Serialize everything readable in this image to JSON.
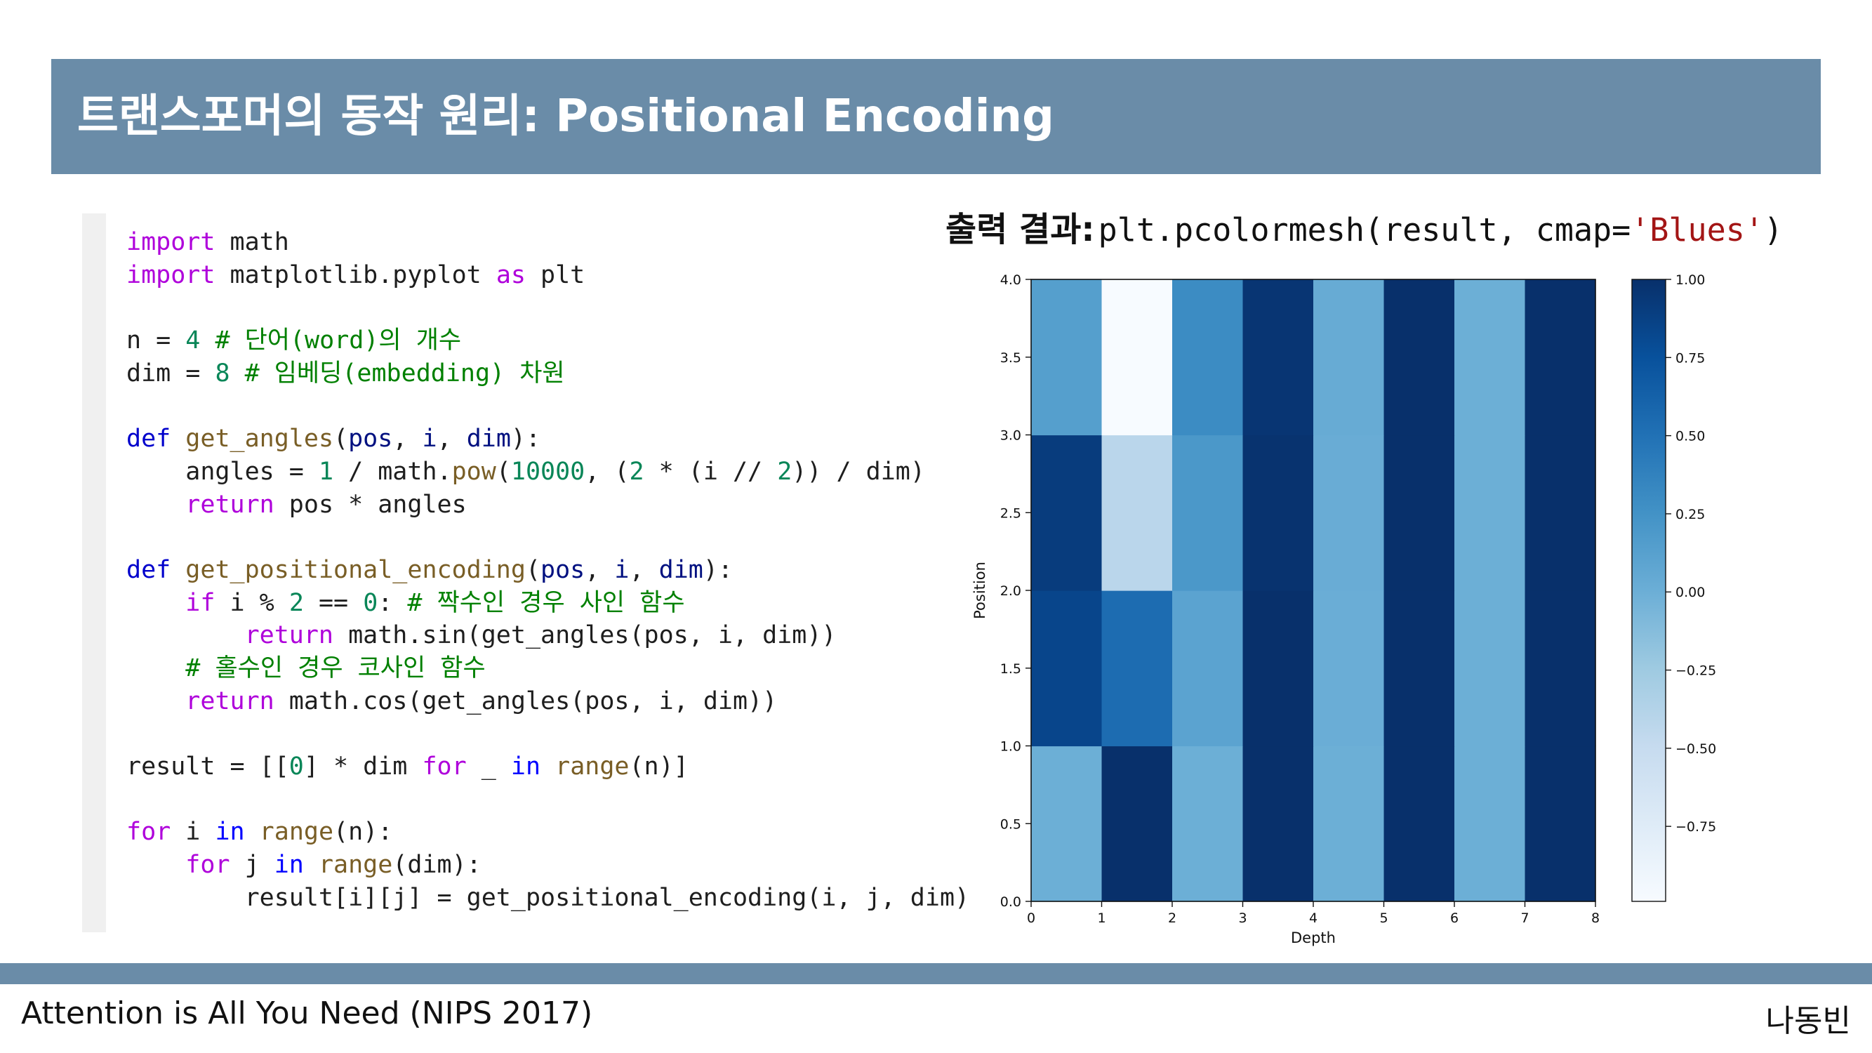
{
  "slide": {
    "title": "트랜스포머의 동작 원리: Positional Encoding",
    "footer_left": "Attention is All You Need (NIPS 2017)",
    "footer_right": "나동빈"
  },
  "output_heading": {
    "label": "출력 결과:",
    "code_prefix": "plt.pcolormesh(result, cmap=",
    "code_string": "'Blues'",
    "code_suffix": ")"
  },
  "code": {
    "lines": [
      [
        {
          "t": "import",
          "c": "kw"
        },
        {
          "t": " math"
        }
      ],
      [
        {
          "t": "import",
          "c": "kw"
        },
        {
          "t": " matplotlib.pyplot "
        },
        {
          "t": "as",
          "c": "kw"
        },
        {
          "t": " plt"
        }
      ],
      [],
      [
        {
          "t": "n = "
        },
        {
          "t": "4",
          "c": "num"
        },
        {
          "t": " # 단어(word)의 개수",
          "c": "cmt"
        }
      ],
      [
        {
          "t": "dim = "
        },
        {
          "t": "8",
          "c": "num"
        },
        {
          "t": " # 임베딩(embedding) 차원",
          "c": "cmt"
        }
      ],
      [],
      [
        {
          "t": "def",
          "c": "def"
        },
        {
          "t": " "
        },
        {
          "t": "get_angles",
          "c": "fn"
        },
        {
          "t": "("
        },
        {
          "t": "pos",
          "c": "param"
        },
        {
          "t": ", "
        },
        {
          "t": "i",
          "c": "param"
        },
        {
          "t": ", "
        },
        {
          "t": "dim",
          "c": "param"
        },
        {
          "t": "):"
        }
      ],
      [
        {
          "t": "    angles = "
        },
        {
          "t": "1",
          "c": "num"
        },
        {
          "t": " / math."
        },
        {
          "t": "pow",
          "c": "fn"
        },
        {
          "t": "("
        },
        {
          "t": "10000",
          "c": "num"
        },
        {
          "t": ", ("
        },
        {
          "t": "2",
          "c": "num"
        },
        {
          "t": " * (i // "
        },
        {
          "t": "2",
          "c": "num"
        },
        {
          "t": ")) / dim)"
        }
      ],
      [
        {
          "t": "    "
        },
        {
          "t": "return",
          "c": "kw"
        },
        {
          "t": " pos * angles"
        }
      ],
      [],
      [
        {
          "t": "def",
          "c": "def"
        },
        {
          "t": " "
        },
        {
          "t": "get_positional_encoding",
          "c": "fn"
        },
        {
          "t": "("
        },
        {
          "t": "pos",
          "c": "param"
        },
        {
          "t": ", "
        },
        {
          "t": "i",
          "c": "param"
        },
        {
          "t": ", "
        },
        {
          "t": "dim",
          "c": "param"
        },
        {
          "t": "):"
        }
      ],
      [
        {
          "t": "    "
        },
        {
          "t": "if",
          "c": "kw"
        },
        {
          "t": " i % "
        },
        {
          "t": "2",
          "c": "num"
        },
        {
          "t": " == "
        },
        {
          "t": "0",
          "c": "num"
        },
        {
          "t": ": "
        },
        {
          "t": "# 짝수인 경우 사인 함수",
          "c": "cmt"
        }
      ],
      [
        {
          "t": "        "
        },
        {
          "t": "return",
          "c": "kw"
        },
        {
          "t": " math.sin(get_angles(pos, i, dim))"
        }
      ],
      [
        {
          "t": "    "
        },
        {
          "t": "# 홀수인 경우 코사인 함수",
          "c": "cmt"
        }
      ],
      [
        {
          "t": "    "
        },
        {
          "t": "return",
          "c": "kw"
        },
        {
          "t": " math.cos(get_angles(pos, i, dim))"
        }
      ],
      [],
      [
        {
          "t": "result = [["
        },
        {
          "t": "0",
          "c": "num"
        },
        {
          "t": "] * dim "
        },
        {
          "t": "for",
          "c": "kw"
        },
        {
          "t": " _ "
        },
        {
          "t": "in",
          "c": "op"
        },
        {
          "t": " "
        },
        {
          "t": "range",
          "c": "fn"
        },
        {
          "t": "(n)]"
        }
      ],
      [],
      [
        {
          "t": "for",
          "c": "kw"
        },
        {
          "t": " i "
        },
        {
          "t": "in",
          "c": "op"
        },
        {
          "t": " "
        },
        {
          "t": "range",
          "c": "fn"
        },
        {
          "t": "(n):"
        }
      ],
      [
        {
          "t": "    "
        },
        {
          "t": "for",
          "c": "kw"
        },
        {
          "t": " j "
        },
        {
          "t": "in",
          "c": "op"
        },
        {
          "t": " "
        },
        {
          "t": "range",
          "c": "fn"
        },
        {
          "t": "(dim):"
        }
      ],
      [
        {
          "t": "        result[i][j] = get_positional_encoding(i, j, dim)"
        }
      ]
    ]
  },
  "code_colors": {
    "kw": "#af00db",
    "def": "#0000cc",
    "fn": "#795e26",
    "param": "#001080",
    "num": "#098658",
    "cmt": "#008000",
    "op": "#0000ff"
  },
  "chart_data": {
    "type": "heatmap",
    "colormap": "Blues",
    "xlabel": "Depth",
    "ylabel": "Position",
    "x_edges": [
      0,
      1,
      2,
      3,
      4,
      5,
      6,
      7,
      8
    ],
    "y_edges": [
      0,
      1,
      2,
      3,
      4
    ],
    "x_ticks": [
      "0",
      "1",
      "2",
      "3",
      "4",
      "5",
      "6",
      "7",
      "8"
    ],
    "y_ticks": [
      "0.0",
      "0.5",
      "1.0",
      "1.5",
      "2.0",
      "2.5",
      "3.0",
      "3.5",
      "4.0"
    ],
    "values": [
      [
        0.0,
        1.0,
        0.0,
        1.0,
        0.0,
        1.0,
        0.0,
        1.0
      ],
      [
        0.84,
        0.54,
        0.1,
        1.0,
        0.01,
        1.0,
        0.0,
        1.0
      ],
      [
        0.91,
        -0.42,
        0.2,
        0.98,
        0.02,
        1.0,
        0.0,
        1.0
      ],
      [
        0.14,
        -0.99,
        0.3,
        0.96,
        0.03,
        1.0,
        0.0,
        1.0
      ]
    ],
    "vmin": -0.99,
    "vmax": 1.0,
    "colorbar_ticks": [
      1.0,
      0.75,
      0.5,
      0.25,
      0.0,
      -0.25,
      -0.5,
      -0.75
    ],
    "colorbar_tick_labels": [
      "1.00",
      "0.75",
      "0.50",
      "0.25",
      "0.00",
      "−0.25",
      "−0.50",
      "−0.75"
    ],
    "grid": false
  }
}
